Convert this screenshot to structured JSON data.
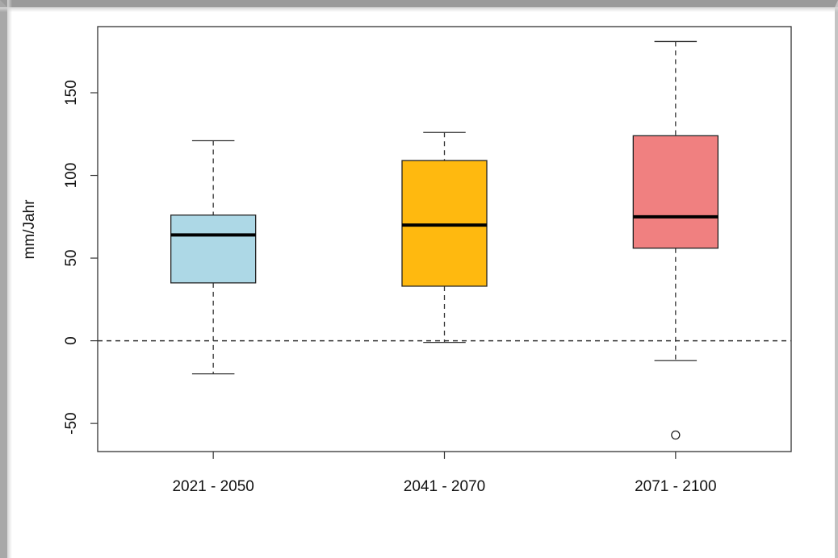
{
  "chart_data": {
    "type": "box",
    "title": "",
    "xlabel": "",
    "ylabel": "mm/Jahr",
    "ylim": [
      -67,
      190
    ],
    "yticks": [
      -50,
      0,
      50,
      100,
      150
    ],
    "ytick_labels": [
      "-50",
      "0",
      "50",
      "100",
      "150"
    ],
    "reference_line": 0,
    "categories": [
      "2021 - 2050",
      "2041 - 2070",
      "2071 - 2100"
    ],
    "boxes": [
      {
        "category": "2021 - 2050",
        "whisker_low": -20,
        "q1": 35,
        "median": 64,
        "q3": 76,
        "whisker_high": 121,
        "outliers": [],
        "color": "#add8e6"
      },
      {
        "category": "2041 - 2070",
        "whisker_low": -1,
        "q1": 33,
        "median": 70,
        "q3": 109,
        "whisker_high": 126,
        "outliers": [],
        "color": "#ffb90f"
      },
      {
        "category": "2071 - 2100",
        "whisker_low": -12,
        "q1": 56,
        "median": 75,
        "q3": 124,
        "whisker_high": 181,
        "outliers": [
          -57
        ],
        "color": "#f08080"
      }
    ]
  }
}
